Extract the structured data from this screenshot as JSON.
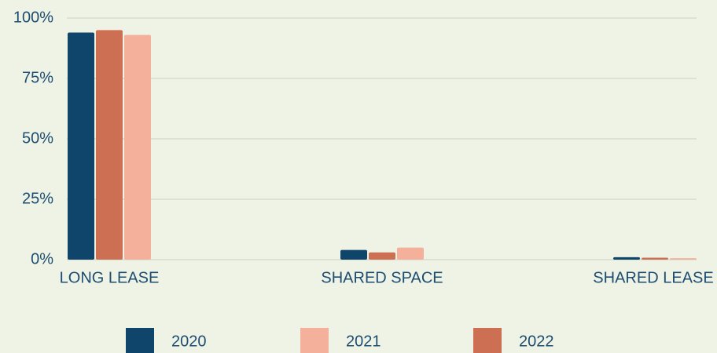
{
  "chart_data": {
    "type": "bar",
    "categories": [
      "LONG LEASE",
      "SHARED SPACE",
      "SHARED LEASE"
    ],
    "series": [
      {
        "name": "2020",
        "color": "#0f456b",
        "values": [
          94,
          4,
          1
        ]
      },
      {
        "name": "2021",
        "color": "#f4b09a",
        "values": [
          93,
          5,
          0.6
        ]
      },
      {
        "name": "2022",
        "color": "#cd6f52",
        "values": [
          95,
          3,
          0.8
        ]
      }
    ],
    "ylim": [
      0,
      100
    ],
    "yticks": [
      {
        "value": 0,
        "label": "0%"
      },
      {
        "value": 25,
        "label": "25%"
      },
      {
        "value": 50,
        "label": "50%"
      },
      {
        "value": 75,
        "label": "75%"
      },
      {
        "value": 100,
        "label": "100%"
      }
    ],
    "grid": true,
    "legend": "bottom"
  }
}
